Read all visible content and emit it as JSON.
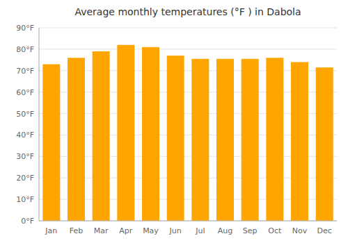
{
  "chart_data": {
    "type": "bar",
    "title": "Average monthly temperatures (°F ) in Dabola",
    "categories": [
      "Jan",
      "Feb",
      "Mar",
      "Apr",
      "May",
      "Jun",
      "Jul",
      "Aug",
      "Sep",
      "Oct",
      "Nov",
      "Dec"
    ],
    "values": [
      73,
      76,
      79,
      82,
      81,
      77,
      75.5,
      75.5,
      75.5,
      76,
      74,
      71.5
    ],
    "color": "#FFA500",
    "ylim": [
      0,
      90
    ],
    "yticks": [
      {
        "value": 0,
        "label": "0°F"
      },
      {
        "value": 10,
        "label": "10°F"
      },
      {
        "value": 20,
        "label": "20°F"
      },
      {
        "value": 30,
        "label": "30°F"
      },
      {
        "value": 40,
        "label": "40°F"
      },
      {
        "value": 50,
        "label": "50°F"
      },
      {
        "value": 60,
        "label": "60°F"
      },
      {
        "value": 70,
        "label": "70°F"
      },
      {
        "value": 80,
        "label": "80°F"
      },
      {
        "value": 90,
        "label": "90°F"
      }
    ],
    "grid": true
  }
}
